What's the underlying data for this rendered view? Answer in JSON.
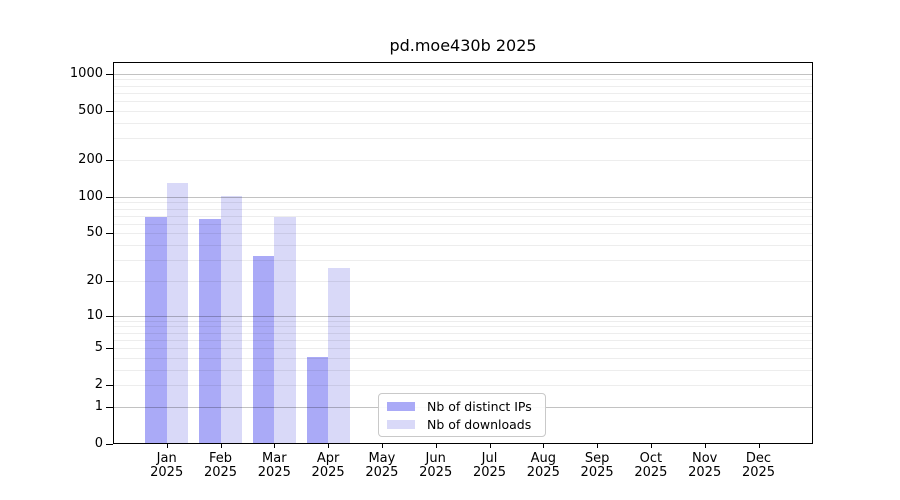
{
  "chart_data": {
    "type": "bar",
    "title": "pd.moe430b 2025",
    "categories": [
      "Jan 2025",
      "Feb 2025",
      "Mar 2025",
      "Apr 2025",
      "May 2025",
      "Jun 2025",
      "Jul 2025",
      "Aug 2025",
      "Sep 2025",
      "Oct 2025",
      "Nov 2025",
      "Dec 2025"
    ],
    "series": [
      {
        "name": "Nb of distinct IPs",
        "color": "#aaaaf7",
        "values": [
          67,
          64,
          32,
          4,
          0,
          0,
          0,
          0,
          0,
          0,
          0,
          0
        ]
      },
      {
        "name": "Nb of downloads",
        "color": "#d9d9f8",
        "values": [
          128,
          100,
          67,
          25,
          0,
          0,
          0,
          0,
          0,
          0,
          0,
          0
        ]
      }
    ],
    "yscale": "log1p",
    "yticks": [
      0,
      1,
      2,
      5,
      10,
      20,
      50,
      100,
      200,
      500,
      1000
    ],
    "ylim": [
      0,
      1250
    ],
    "xlabel": "",
    "ylabel": "",
    "grid": {
      "horizontal": true,
      "vertical": false,
      "minor_lines": true,
      "major_at_powers_of_10": true
    },
    "legend": {
      "position": "lower-center-right"
    }
  }
}
